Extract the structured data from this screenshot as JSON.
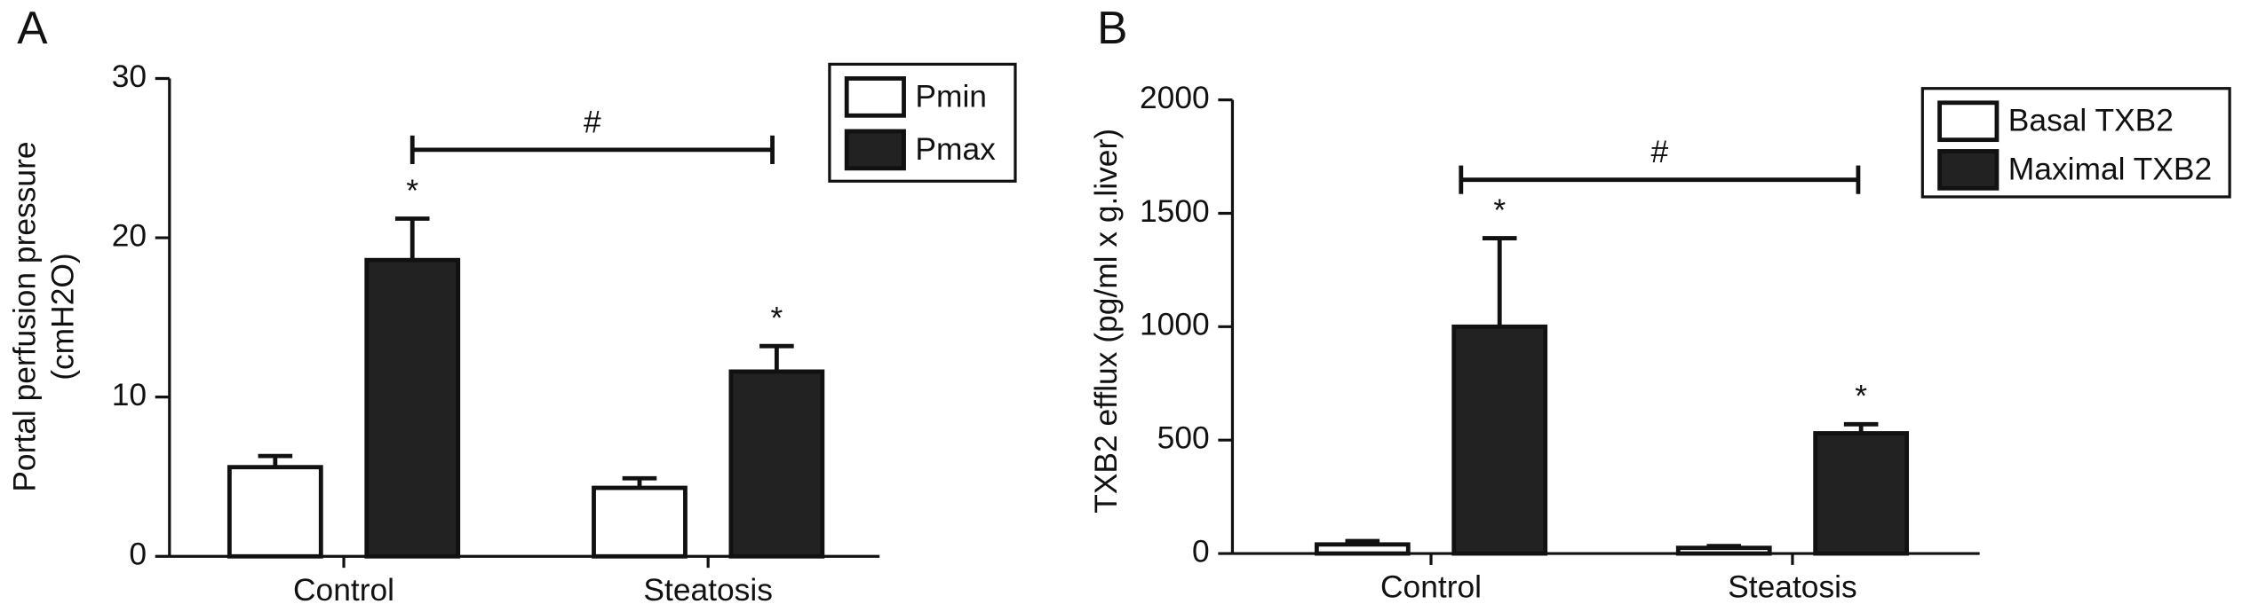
{
  "chart_data": [
    {
      "type": "bar",
      "panel": "A",
      "ylabel": [
        "Portal perfusion pressure",
        "(cmH2O)"
      ],
      "categories": [
        "Control",
        "Steatosis"
      ],
      "series": [
        {
          "name": "Pmin",
          "color": "#ffffff",
          "values": [
            5.6,
            4.3
          ],
          "errors": [
            0.7,
            0.6
          ],
          "annotations": [
            null,
            null
          ]
        },
        {
          "name": "Pmax",
          "color": "#222222",
          "values": [
            18.6,
            11.6
          ],
          "errors": [
            2.6,
            1.6
          ],
          "annotations": [
            "*",
            "*"
          ]
        }
      ],
      "bracket": "#",
      "ylim": [
        0,
        30
      ],
      "yticks": [
        0,
        10,
        20,
        30
      ],
      "legend": "upper right"
    },
    {
      "type": "bar",
      "panel": "B",
      "ylabel": [
        "TXB2 efflux (pg/ml x g.liver)"
      ],
      "categories": [
        "Control",
        "Steatosis"
      ],
      "series": [
        {
          "name": "Basal TXB2",
          "color": "#ffffff",
          "values": [
            40,
            25
          ],
          "errors": [
            15,
            8
          ],
          "annotations": [
            null,
            null
          ]
        },
        {
          "name": "Maximal TXB2",
          "color": "#222222",
          "values": [
            1000,
            530
          ],
          "errors": [
            390,
            40
          ],
          "annotations": [
            "*",
            "*"
          ]
        }
      ],
      "bracket": "#",
      "ylim": [
        0,
        2000
      ],
      "yticks": [
        0,
        500,
        1000,
        1500,
        2000
      ],
      "legend": "upper right"
    }
  ]
}
